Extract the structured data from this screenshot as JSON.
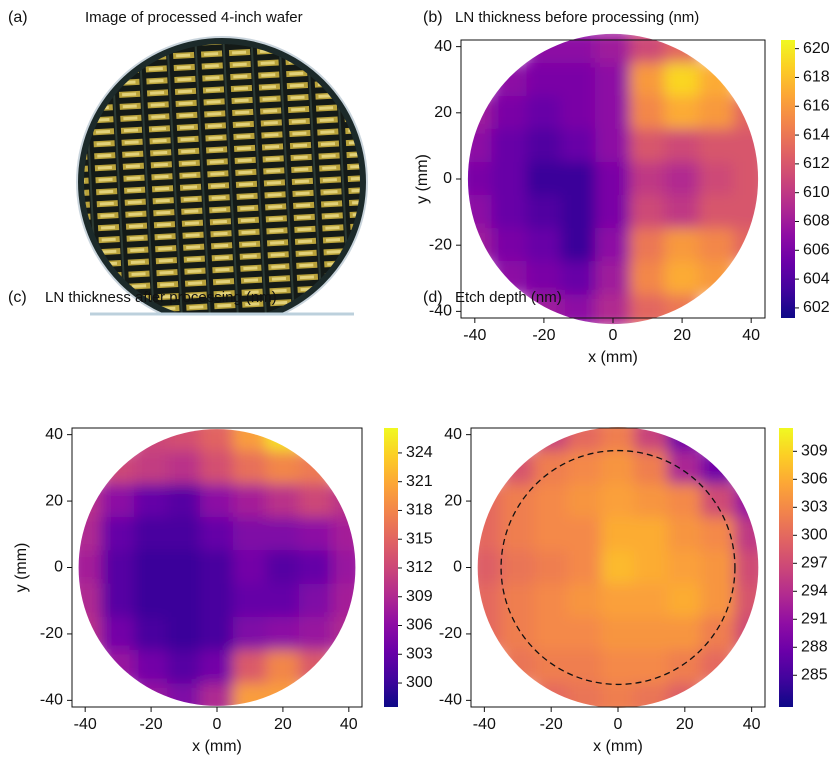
{
  "chart_data": [
    {
      "type": "image",
      "label": "(a)",
      "title": "Image of processed 4-inch wafer"
    },
    {
      "type": "heatmap",
      "label": "(b)",
      "title": "LN thickness before processing (nm)",
      "xlabel": "x (mm)",
      "ylabel": "y (mm)",
      "x": [
        -40,
        -30,
        -20,
        -10,
        0,
        10,
        20,
        30,
        40
      ],
      "y": [
        40,
        30,
        20,
        10,
        0,
        -10,
        -20,
        -30,
        -40
      ],
      "values": [
        [
          null,
          null,
          607,
          607,
          608,
          611,
          613,
          null,
          null
        ],
        [
          null,
          607,
          606,
          606,
          607,
          616,
          619,
          617,
          null
        ],
        [
          608,
          606,
          605,
          606,
          607,
          615,
          617,
          616,
          613
        ],
        [
          607,
          605,
          604,
          605,
          607,
          612,
          611,
          612,
          612
        ],
        [
          606,
          605,
          603,
          603,
          606,
          610,
          609,
          611,
          612
        ],
        [
          607,
          605,
          604,
          603,
          606,
          611,
          610,
          612,
          612
        ],
        [
          608,
          606,
          605,
          603,
          607,
          614,
          616,
          615,
          613
        ],
        [
          null,
          607,
          606,
          605,
          608,
          615,
          617,
          616,
          null
        ],
        [
          null,
          null,
          608,
          607,
          609,
          613,
          614,
          null,
          null
        ]
      ],
      "extent_radius": 42,
      "xlim": [
        -44,
        44
      ],
      "ylim": [
        -42,
        42
      ],
      "xticks": [
        -40,
        -20,
        0,
        20,
        40
      ],
      "yticks": [
        -40,
        -20,
        0,
        20,
        40
      ],
      "colormap": "plasma",
      "clim": [
        601.3,
        620.6
      ],
      "cticks": [
        602,
        604,
        606,
        608,
        610,
        612,
        614,
        616,
        618,
        620
      ]
    },
    {
      "type": "heatmap",
      "label": "(c)",
      "title": "LN thickness after processing (nm)",
      "xlabel": "x (mm)",
      "ylabel": "y (mm)",
      "x": [
        -40,
        -30,
        -20,
        -10,
        0,
        10,
        20,
        30,
        40
      ],
      "y": [
        40,
        30,
        20,
        10,
        0,
        -10,
        -20,
        -30,
        -40
      ],
      "values": [
        [
          null,
          null,
          312,
          313,
          315,
          320,
          325,
          null,
          null
        ],
        [
          null,
          312,
          311,
          310,
          313,
          316,
          318,
          317,
          null
        ],
        [
          310,
          306,
          303,
          302,
          306,
          308,
          310,
          312,
          310
        ],
        [
          309,
          303,
          301,
          301,
          303,
          305,
          305,
          306,
          308
        ],
        [
          308,
          302,
          300,
          300,
          301,
          304,
          302,
          303,
          307
        ],
        [
          309,
          302,
          300,
          300,
          301,
          303,
          303,
          305,
          308
        ],
        [
          310,
          304,
          301,
          300,
          301,
          305,
          306,
          307,
          309
        ],
        [
          null,
          307,
          304,
          302,
          304,
          314,
          318,
          314,
          null
        ],
        [
          null,
          null,
          307,
          305,
          309,
          320,
          320,
          null,
          null
        ]
      ],
      "extent_radius": 42,
      "xlim": [
        -44,
        44
      ],
      "ylim": [
        -42,
        42
      ],
      "xticks": [
        -40,
        -20,
        0,
        20,
        40
      ],
      "yticks": [
        -40,
        -20,
        0,
        20,
        40
      ],
      "colormap": "plasma",
      "clim": [
        297.5,
        326.6
      ],
      "cticks": [
        300,
        303,
        306,
        309,
        312,
        315,
        318,
        321,
        324
      ]
    },
    {
      "type": "heatmap",
      "label": "(d)",
      "title": "Etch depth (nm)",
      "xlabel": "x (mm)",
      "x": [
        -40,
        -30,
        -20,
        -10,
        0,
        10,
        20,
        30,
        40
      ],
      "y": [
        40,
        30,
        20,
        10,
        0,
        -10,
        -20,
        -30,
        -40
      ],
      "values": [
        [
          null,
          null,
          296,
          300,
          302,
          296,
          288,
          null,
          null
        ],
        [
          null,
          298,
          302,
          303,
          304,
          302,
          293,
          288,
          null
        ],
        [
          300,
          302,
          303,
          304,
          305,
          304,
          303,
          297,
          291
        ],
        [
          300,
          302,
          303,
          303,
          306,
          306,
          304,
          303,
          295
        ],
        [
          299,
          301,
          302,
          303,
          307,
          306,
          305,
          304,
          297
        ],
        [
          300,
          302,
          303,
          304,
          305,
          305,
          306,
          304,
          298
        ],
        [
          300,
          302,
          303,
          303,
          304,
          304,
          304,
          302,
          297
        ],
        [
          null,
          301,
          302,
          302,
          303,
          303,
          302,
          300,
          null
        ],
        [
          null,
          null,
          300,
          301,
          302,
          301,
          299,
          null,
          null
        ]
      ],
      "extent_radius": 42,
      "dashed_circle_radius": 35,
      "xlim": [
        -44,
        44
      ],
      "ylim": [
        -42,
        42
      ],
      "xticks": [
        -40,
        -20,
        0,
        20,
        40
      ],
      "yticks": [
        -40,
        -20,
        0,
        20,
        40
      ],
      "colormap": "plasma",
      "clim": [
        281.6,
        311.5
      ],
      "cticks": [
        285,
        288,
        291,
        294,
        297,
        300,
        303,
        306,
        309
      ]
    }
  ]
}
